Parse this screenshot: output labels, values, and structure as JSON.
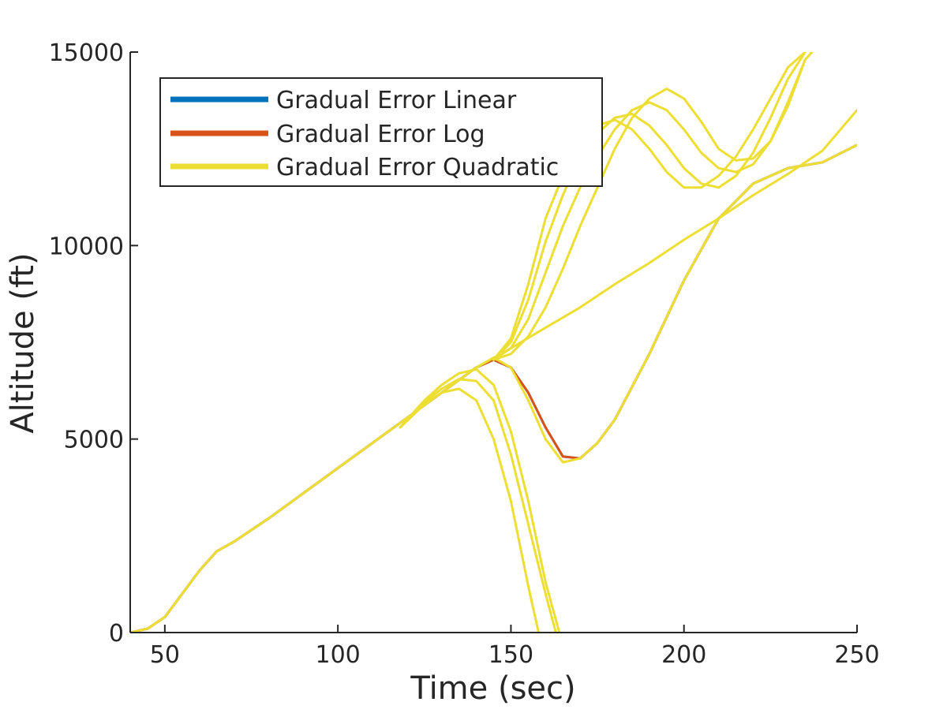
{
  "chart_data": {
    "type": "line",
    "title": "",
    "xlabel": "Time (sec)",
    "ylabel": "Altitude (ft)",
    "xlim": [
      40,
      250
    ],
    "ylim": [
      0,
      15000
    ],
    "xticks": [
      50,
      100,
      150,
      200,
      250
    ],
    "yticks": [
      0,
      5000,
      10000,
      15000
    ],
    "grid": false,
    "legend_position": "top-left",
    "legend": [
      "Gradual Error Linear",
      "Gradual Error Log",
      "Gradual Error Quadratic"
    ],
    "series": [
      {
        "name": "Gradual Error Linear",
        "color": "#0072BD",
        "lines": [
          {
            "x": [
              40,
              45,
              50,
              55,
              60,
              65,
              70,
              80,
              90,
              100,
              110,
              120,
              130,
              140,
              145,
              150,
              155,
              160,
              165,
              170,
              175,
              180,
              190,
              200,
              210,
              220,
              230,
              240,
              250
            ],
            "y": [
              0,
              100,
              400,
              1000,
              1600,
              2100,
              2350,
              2950,
              3600,
              4250,
              4900,
              5550,
              6200,
              6850,
              7050,
              6850,
              6200,
              5300,
              4550,
              4500,
              4900,
              5500,
              7200,
              9100,
              10700,
              11600,
              12000,
              12150,
              12600
            ]
          }
        ]
      },
      {
        "name": "Gradual Error Log",
        "color": "#D95319",
        "lines": [
          {
            "x": [
              40,
              45,
              50,
              55,
              60,
              65,
              70,
              80,
              90,
              100,
              110,
              120,
              130,
              140,
              145,
              150,
              155,
              160,
              165,
              170,
              175,
              180,
              190,
              200,
              210,
              220,
              230,
              240,
              250
            ],
            "y": [
              0,
              100,
              400,
              1000,
              1600,
              2100,
              2350,
              2950,
              3600,
              4250,
              4900,
              5550,
              6200,
              6850,
              7050,
              6850,
              6200,
              5300,
              4550,
              4500,
              4900,
              5500,
              7200,
              9100,
              10700,
              11600,
              12000,
              12150,
              12600
            ]
          }
        ]
      },
      {
        "name": "Gradual Error Quadratic",
        "color": "#EDDE33",
        "lines": [
          {
            "x": [
              40,
              45,
              50,
              55,
              60,
              65,
              70,
              80,
              90,
              100,
              110,
              120,
              130,
              140,
              150,
              160,
              170,
              180,
              190,
              200,
              210,
              220,
              230,
              240,
              250
            ],
            "y": [
              0,
              100,
              400,
              1000,
              1600,
              2100,
              2350,
              2950,
              3600,
              4250,
              4900,
              5550,
              6200,
              6850,
              7350,
              7880,
              8400,
              9000,
              9550,
              10150,
              10700,
              11300,
              11850,
              12450,
              13500
            ]
          },
          {
            "x": [
              145,
              150,
              155,
              160,
              165,
              170,
              175,
              180,
              185,
              190,
              195,
              200,
              205,
              210,
              215,
              220,
              225,
              230,
              235
            ],
            "y": [
              7050,
              7600,
              9000,
              10700,
              11800,
              12700,
              13100,
              13250,
              13000,
              12500,
              11900,
              11500,
              11500,
              11800,
              12300,
              13000,
              13800,
              14600,
              15000
            ]
          },
          {
            "x": [
              145,
              150,
              155,
              160,
              165,
              170,
              175,
              180,
              185,
              190,
              195,
              200,
              205,
              210,
              215,
              220,
              225,
              230,
              235
            ],
            "y": [
              7050,
              7500,
              8600,
              10100,
              11300,
              12300,
              12900,
              13300,
              13400,
              13100,
              12600,
              12000,
              11600,
              11500,
              11800,
              12400,
              13300,
              14300,
              15000
            ]
          },
          {
            "x": [
              145,
              150,
              155,
              160,
              165,
              170,
              175,
              180,
              185,
              190,
              195,
              200,
              205,
              210,
              215,
              220,
              225,
              230,
              235
            ],
            "y": [
              7050,
              7350,
              8100,
              9300,
              10500,
              11500,
              12300,
              13000,
              13500,
              13700,
              13500,
              13000,
              12400,
              12000,
              11900,
              12100,
              12700,
              13700,
              14800
            ]
          },
          {
            "x": [
              145,
              150,
              155,
              160,
              165,
              170,
              175,
              180,
              185,
              190,
              195,
              200,
              205,
              210,
              215,
              220,
              225,
              230,
              235,
              237
            ],
            "y": [
              7050,
              7200,
              7650,
              8400,
              9400,
              10500,
              11500,
              12500,
              13300,
              13800,
              14050,
              13800,
              13200,
              12500,
              12200,
              12250,
              12700,
              13600,
              14800,
              15000
            ]
          },
          {
            "x": [
              118,
              125,
              130,
              135,
              140,
              145,
              150,
              155,
              158
            ],
            "y": [
              5300,
              5900,
              6200,
              6300,
              6000,
              5000,
              3400,
              1200,
              0
            ]
          },
          {
            "x": [
              118,
              125,
              130,
              135,
              140,
              145,
              150,
              155,
              160,
              163
            ],
            "y": [
              5300,
              5950,
              6300,
              6550,
              6500,
              6000,
              4600,
              2800,
              1000,
              0
            ]
          },
          {
            "x": [
              118,
              125,
              130,
              135,
              140,
              145,
              150,
              155,
              160,
              164
            ],
            "y": [
              5300,
              6000,
              6400,
              6700,
              6800,
              6400,
              5200,
              3400,
              1300,
              0
            ]
          },
          {
            "x": [
              140,
              145,
              150,
              155,
              160,
              165,
              170,
              175,
              180,
              190,
              200,
              210,
              220,
              230,
              240,
              250
            ],
            "y": [
              6850,
              7100,
              6850,
              6000,
              5000,
              4400,
              4500,
              4900,
              5500,
              7200,
              9100,
              10700,
              11600,
              12000,
              12150,
              12600
            ]
          }
        ]
      }
    ]
  }
}
